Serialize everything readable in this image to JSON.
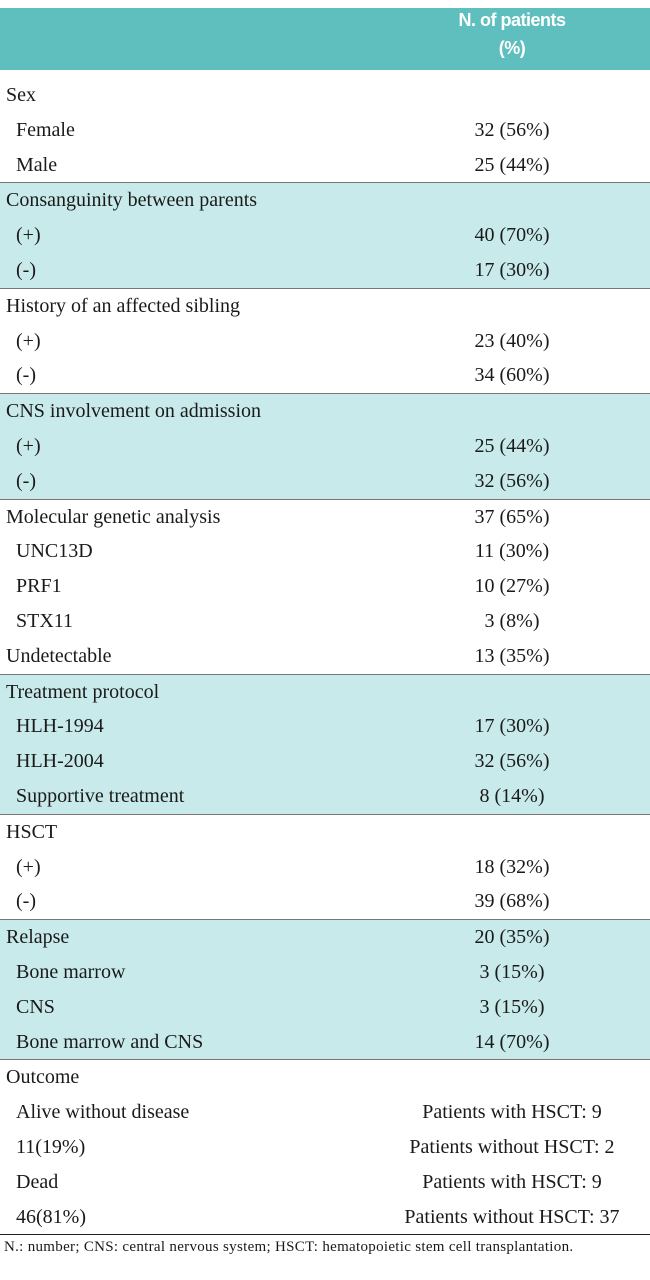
{
  "table": {
    "header": [
      "N. of patients",
      "(%)"
    ],
    "groups": [
      {
        "rows": [
          [
            "Sex"
          ],
          [
            "Female",
            "32 (56%)"
          ],
          [
            "Male",
            "25 (44%)"
          ]
        ]
      },
      {
        "rows": [
          [
            "Consanguinity between parents"
          ],
          [
            "(+)",
            "40 (70%)"
          ],
          [
            "(-)",
            "17 (30%)"
          ]
        ]
      },
      {
        "rows": [
          [
            "History of an affected sibling"
          ],
          [
            "(+)",
            "23 (40%)"
          ],
          [
            "(-)",
            "34 (60%)"
          ]
        ]
      },
      {
        "rows": [
          [
            "CNS involvement on admission"
          ],
          [
            "(+)",
            "25 (44%)"
          ],
          [
            "(-)",
            "32 (56%)"
          ]
        ]
      },
      {
        "rows": [
          [
            "Molecular genetic analysis",
            "37 (65%)"
          ],
          [
            "UNC13D",
            "11 (30%)"
          ],
          [
            "PRF1",
            "10 (27%)"
          ],
          [
            "STX11",
            "3 (8%)"
          ],
          [
            "Undetectable",
            "13 (35%)"
          ]
        ]
      },
      {
        "rows": [
          [
            "Treatment protocol"
          ],
          [
            "HLH-1994",
            "17 (30%)"
          ],
          [
            "HLH-2004",
            "32 (56%)"
          ],
          [
            "Supportive treatment",
            "8 (14%)"
          ]
        ]
      },
      {
        "rows": [
          [
            "HSCT"
          ],
          [
            "(+)",
            "18 (32%)"
          ],
          [
            "(-)",
            "39 (68%)"
          ]
        ]
      },
      {
        "rows": [
          [
            "Relapse",
            "20 (35%)"
          ],
          [
            "Bone marrow",
            "3 (15%)"
          ],
          [
            "CNS",
            "3 (15%)"
          ],
          [
            "Bone marrow and CNS",
            "14 (70%)"
          ]
        ]
      },
      {
        "rows": [
          [
            "Outcome"
          ],
          [
            "Alive without disease",
            "Patients with HSCT: 9"
          ],
          [
            "11(19%)",
            "Patients without HSCT: 2"
          ],
          [
            "Dead",
            "Patients with HSCT: 9"
          ],
          [
            "46(81%)",
            "Patients without HSCT: 37"
          ]
        ]
      }
    ],
    "footnote": "N.: number; CNS: central nervous system; HSCT: hematopoietic stem cell transplantation."
  }
}
